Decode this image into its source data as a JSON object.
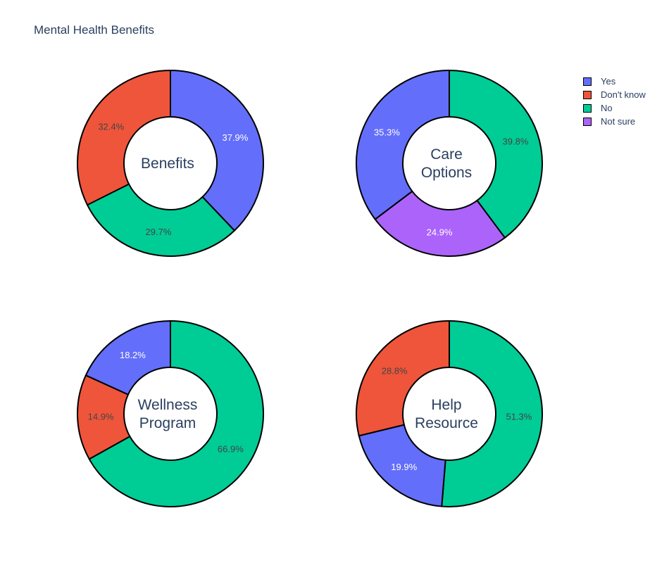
{
  "chart_data": {
    "type": "pie",
    "title": "Mental Health Benefits",
    "legend_placement": "top-right",
    "colors": {
      "Yes": "#636efa",
      "Don't know": "#ef553b",
      "No": "#00cc96",
      "Not sure": "#ab63fa"
    },
    "legend": [
      "Yes",
      "Don't know",
      "No",
      "Not sure"
    ],
    "charts": [
      {
        "center_label": [
          "Benefits"
        ],
        "slices": [
          {
            "label": "Yes",
            "value": 37.9
          },
          {
            "label": "No",
            "value": 29.7
          },
          {
            "label": "Don't know",
            "value": 32.4
          }
        ]
      },
      {
        "center_label": [
          "Care",
          "Options"
        ],
        "slices": [
          {
            "label": "No",
            "value": 39.8
          },
          {
            "label": "Not sure",
            "value": 24.9
          },
          {
            "label": "Yes",
            "value": 35.3
          }
        ]
      },
      {
        "center_label": [
          "Wellness",
          "Program"
        ],
        "slices": [
          {
            "label": "No",
            "value": 66.9
          },
          {
            "label": "Don't know",
            "value": 14.9
          },
          {
            "label": "Yes",
            "value": 18.2
          }
        ]
      },
      {
        "center_label": [
          "Help",
          "Resource"
        ],
        "slices": [
          {
            "label": "No",
            "value": 51.3
          },
          {
            "label": "Yes",
            "value": 19.9
          },
          {
            "label": "Don't know",
            "value": 28.8
          }
        ]
      }
    ]
  }
}
